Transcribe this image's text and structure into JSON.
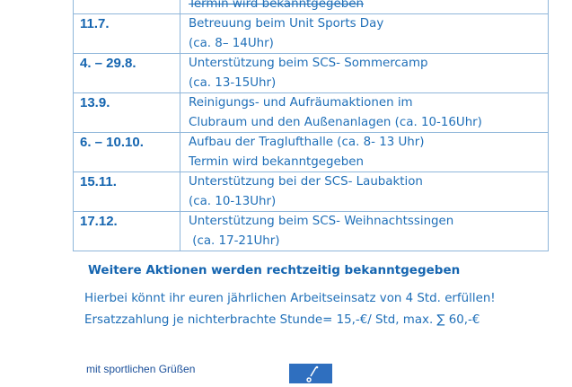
{
  "schedule": [
    {
      "date": "",
      "lines": [
        "",
        "Termin wird bekanntgegeben"
      ],
      "struck": true
    },
    {
      "date": "11.7.",
      "lines": [
        "Betreuung beim Unit Sports Day",
        "(ca. 8– 14Uhr)"
      ]
    },
    {
      "date": "4. – 29.8.",
      "lines": [
        "Unterstützung beim SCS- Sommercamp",
        "(ca. 13-15Uhr)"
      ]
    },
    {
      "date": "13.9.",
      "lines": [
        "Reinigungs- und Aufräumaktionen im",
        "Clubraum und den Außenanlagen (ca. 10-16Uhr)"
      ]
    },
    {
      "date": "6. – 10.10.",
      "lines": [
        "Aufbau der Traglufthalle (ca. 8- 13 Uhr)",
        "Termin wird bekanntgegeben"
      ]
    },
    {
      "date": "15.11.",
      "lines": [
        "Unterstützung bei der SCS- Laubaktion",
        "(ca. 10-13Uhr)"
      ]
    },
    {
      "date": "17.12.",
      "lines": [
        "Unterstützung beim SCS- Weihnachtssingen",
        " (ca. 17-21Uhr)"
      ]
    }
  ],
  "note": "Weitere Aktionen werden rechtzeitig bekanntgegeben",
  "info_line1": "Hierbei könnt ihr euren jährlichen Arbeitseinsatz von 4 Std. erfüllen!",
  "info_line2": "Ersatzzahlung je nichterbrachte Stunde= 15,-€/ Std, max. ∑ 60,-€",
  "greeting": "mit sportlichen Grüßen",
  "colors": {
    "text": "#1f6fb8",
    "border": "#8fb6da",
    "logo": "#2f6fbf"
  }
}
